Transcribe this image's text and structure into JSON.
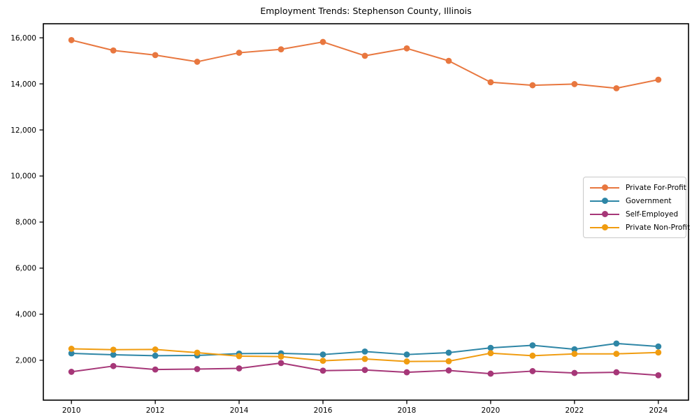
{
  "chart_data": {
    "type": "line",
    "title": "Employment Trends: Stephenson County, Illinois",
    "xlabel": "",
    "ylabel": "",
    "x": [
      2010,
      2011,
      2012,
      2013,
      2014,
      2015,
      2016,
      2017,
      2018,
      2019,
      2020,
      2021,
      2022,
      2023,
      2024
    ],
    "series": [
      {
        "name": "Private For-Profit",
        "color": "#e8773f",
        "values": [
          15900,
          15450,
          15250,
          14960,
          15350,
          15500,
          15820,
          15220,
          15540,
          15000,
          14070,
          13940,
          13990,
          13810,
          14180
        ]
      },
      {
        "name": "Government",
        "color": "#2e86a6",
        "values": [
          2300,
          2240,
          2200,
          2210,
          2290,
          2300,
          2250,
          2380,
          2250,
          2330,
          2540,
          2650,
          2480,
          2730,
          2600
        ]
      },
      {
        "name": "Self-Employed",
        "color": "#a63778",
        "values": [
          1500,
          1750,
          1600,
          1620,
          1650,
          1880,
          1550,
          1580,
          1480,
          1560,
          1420,
          1530,
          1450,
          1480,
          1350
        ]
      },
      {
        "name": "Private Non-Profit",
        "color": "#f09c10",
        "values": [
          2500,
          2460,
          2470,
          2330,
          2180,
          2160,
          1980,
          2060,
          1950,
          1960,
          2310,
          2200,
          2280,
          2280,
          2340
        ]
      }
    ],
    "xticks": [
      2010,
      2012,
      2014,
      2016,
      2018,
      2020,
      2022,
      2024
    ],
    "yticks": [
      2000,
      4000,
      6000,
      8000,
      10000,
      12000,
      14000,
      16000
    ],
    "ytick_format": "comma",
    "xlim": [
      2009.33,
      2024.72
    ],
    "ylim": [
      270,
      16610
    ],
    "grid": false,
    "legend_position": "right-center",
    "marker": "circle",
    "background": "#ffffff",
    "axis_color": "#000000"
  }
}
